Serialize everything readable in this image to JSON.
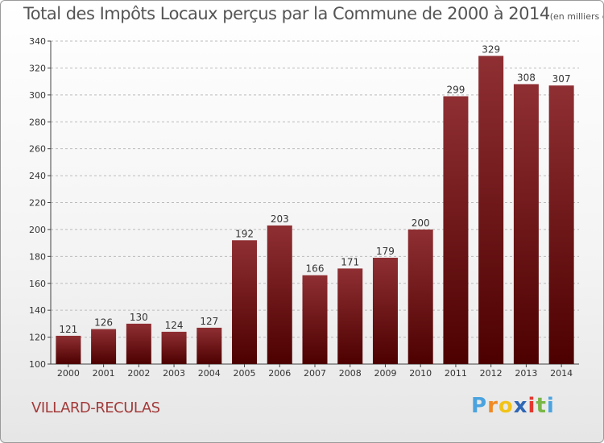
{
  "title": "Total des Impôts Locaux perçus par la Commune de 2000 à 2014",
  "title_unit": "(en milliers d'€)",
  "commune": "VILLARD-RECULAS",
  "brand": {
    "letters": [
      "P",
      "r",
      "o",
      "x",
      "i",
      "t",
      "i"
    ],
    "colors": [
      "#4aa3df",
      "#f08a24",
      "#f2c318",
      "#2f67b5",
      "#e2382f",
      "#7ab648",
      "#4aa3df"
    ]
  },
  "colors": {
    "bar_top": "#8f2f33",
    "bar_bottom": "#4d0000",
    "grid": "#bbbbbb",
    "text": "#333333"
  },
  "chart_data": {
    "type": "bar",
    "title": "Total des Impôts Locaux perçus par la Commune de 2000 à 2014",
    "xlabel": "",
    "ylabel": "",
    "categories": [
      "2000",
      "2001",
      "2002",
      "2003",
      "2004",
      "2005",
      "2006",
      "2007",
      "2008",
      "2009",
      "2010",
      "2011",
      "2012",
      "2013",
      "2014"
    ],
    "values": [
      121,
      126,
      130,
      124,
      127,
      192,
      203,
      166,
      171,
      179,
      200,
      299,
      329,
      308,
      307
    ],
    "ylim": [
      100,
      340
    ],
    "yticks": [
      100,
      120,
      140,
      160,
      180,
      200,
      220,
      240,
      260,
      280,
      300,
      320,
      340
    ],
    "grid": true
  }
}
